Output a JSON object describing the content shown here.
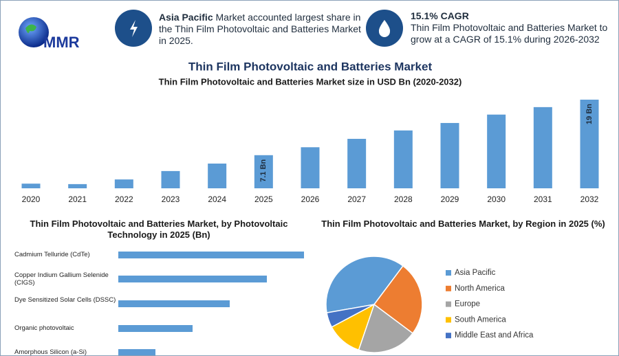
{
  "header": {
    "logo": "MMR",
    "card1": {
      "bold": "Asia Pacific",
      "text": "Market accounted largest share in the Thin Film Photovoltaic and Batteries Market in 2025."
    },
    "card2": {
      "title": "15.1% CAGR",
      "text": "Thin Film Photovoltaic and Batteries Market to grow at a CAGR of 15.1% during 2026-2032"
    }
  },
  "title": "Thin Film Photovoltaic and Batteries Market",
  "chart_data": [
    {
      "type": "bar",
      "title": "Thin Film Photovoltaic and Batteries Market size in USD Bn (2020-2032)",
      "categories": [
        "2020",
        "2021",
        "2022",
        "2023",
        "2024",
        "2025",
        "2026",
        "2027",
        "2028",
        "2029",
        "2030",
        "2031",
        "2032"
      ],
      "values": [
        1.0,
        0.9,
        1.9,
        3.7,
        5.3,
        7.1,
        8.8,
        10.6,
        12.4,
        14.0,
        15.8,
        17.4,
        19
      ],
      "value_labels": [
        null,
        null,
        null,
        null,
        null,
        "7.1 Bn",
        null,
        null,
        null,
        null,
        null,
        null,
        "19 Bn"
      ],
      "color": "#5b9bd5"
    },
    {
      "type": "hbar",
      "title": "Thin Film Photovoltaic and Batteries Market, by Photovoltaic Technology in 2025 (Bn)",
      "categories": [
        "Cadmium Telluride (CdTe)",
        "Copper Indium Gallium Selenide (CIGS)",
        "Dye Sensitized Solar Cells (DSSC)",
        "Organic photovoltaic",
        "Amorphous Silicon (a-Si)"
      ],
      "values": [
        5,
        4,
        3,
        2,
        1
      ],
      "color": "#5b9bd5"
    },
    {
      "type": "pie",
      "title": "Thin Film Photovoltaic and Batteries Market, by Region in 2025 (%)",
      "categories": [
        "Asia Pacific",
        "North America",
        "Europe",
        "South America",
        "Middle East and Africa"
      ],
      "values": [
        38,
        25,
        20,
        12,
        5
      ],
      "colors": [
        "#5b9bd5",
        "#ed7d31",
        "#a5a5a5",
        "#ffc000",
        "#4472c4"
      ]
    }
  ]
}
